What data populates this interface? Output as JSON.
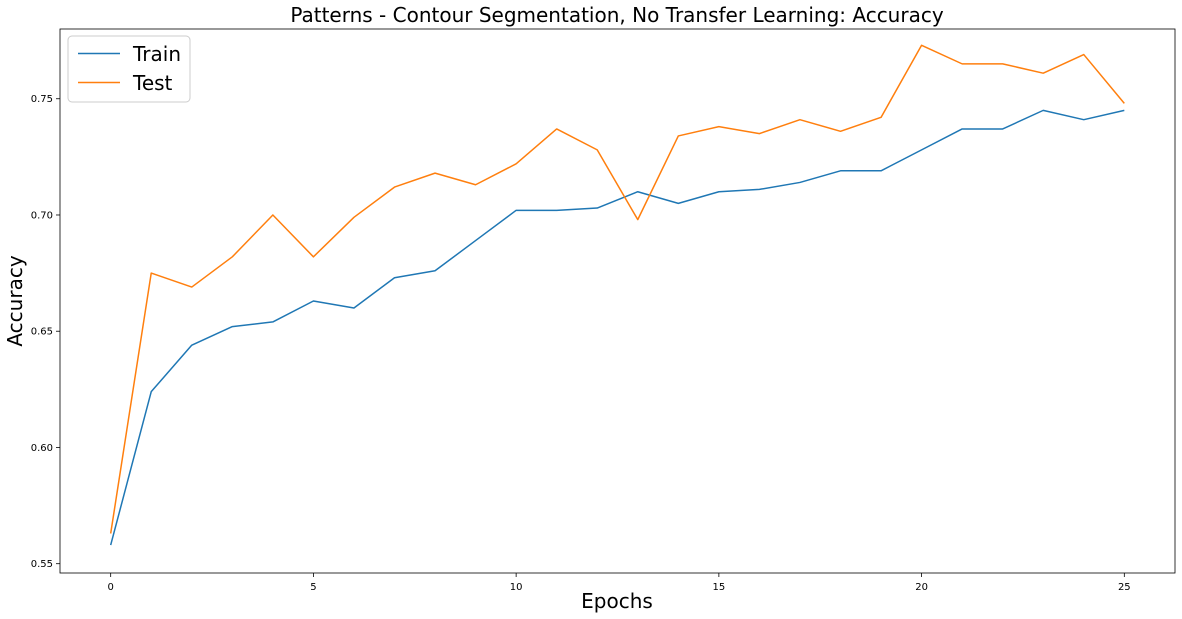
{
  "chart_data": {
    "type": "line",
    "title": "Patterns - Contour Segmentation, No Transfer Learning: Accuracy",
    "xlabel": "Epochs",
    "ylabel": "Accuracy",
    "xlim": [
      -1.25,
      26.25
    ],
    "ylim": [
      0.546,
      0.78
    ],
    "xticks": [
      0,
      5,
      10,
      15,
      20,
      25
    ],
    "yticks": [
      0.55,
      0.6,
      0.65,
      0.7,
      0.75
    ],
    "ytick_labels": [
      "0.55",
      "0.60",
      "0.65",
      "0.70",
      "0.75"
    ],
    "grid": false,
    "legend_position": "upper left",
    "x": [
      0,
      1,
      2,
      3,
      4,
      5,
      6,
      7,
      8,
      9,
      10,
      11,
      12,
      13,
      14,
      15,
      16,
      17,
      18,
      19,
      20,
      21,
      22,
      23,
      24,
      25
    ],
    "series": [
      {
        "name": "Train",
        "color": "#1f77b4",
        "values": [
          0.558,
          0.624,
          0.644,
          0.652,
          0.654,
          0.663,
          0.66,
          0.673,
          0.676,
          0.689,
          0.702,
          0.702,
          0.703,
          0.71,
          0.705,
          0.71,
          0.711,
          0.714,
          0.719,
          0.719,
          0.728,
          0.737,
          0.737,
          0.745,
          0.741,
          0.745
        ]
      },
      {
        "name": "Test",
        "color": "#ff7f0e",
        "values": [
          0.563,
          0.675,
          0.669,
          0.682,
          0.7,
          0.682,
          0.699,
          0.712,
          0.718,
          0.713,
          0.722,
          0.737,
          0.728,
          0.698,
          0.734,
          0.738,
          0.735,
          0.741,
          0.736,
          0.742,
          0.773,
          0.765,
          0.765,
          0.761,
          0.769,
          0.748
        ]
      }
    ]
  }
}
